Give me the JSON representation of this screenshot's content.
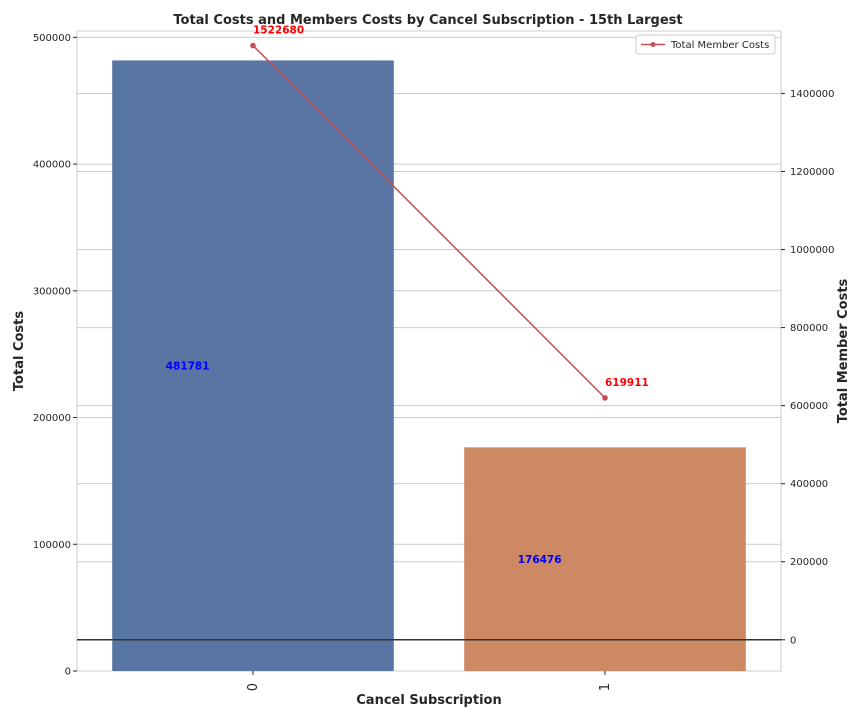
{
  "chart_data": {
    "type": "bar",
    "title": "Total Costs and Members Costs by Cancel Subscription - 15th Largest",
    "xlabel": "Cancel Subscription",
    "ylabel": "Total Costs",
    "y2label": "Total Member Costs",
    "categories": [
      "0",
      "1"
    ],
    "ylim": [
      0,
      505000
    ],
    "y2lim": [
      -80000,
      1560000
    ],
    "yticks": [
      0,
      100000,
      200000,
      300000,
      400000,
      500000
    ],
    "y2ticks": [
      0,
      200000,
      400000,
      600000,
      800000,
      1000000,
      1200000,
      1400000
    ],
    "bars": {
      "name": "Total Costs",
      "values": [
        481781,
        176476
      ],
      "colors": [
        "#5975a4",
        "#cc8963"
      ],
      "label_color": "#0000ff",
      "labels": [
        "481781",
        "176476"
      ]
    },
    "line": {
      "name": "Total Member Costs",
      "values": [
        1522680,
        619911
      ],
      "color": "#c44e52",
      "label_color": "#ff0000",
      "labels": [
        "1522680",
        "619911"
      ]
    },
    "grid": true,
    "legend_position": "top-right"
  }
}
